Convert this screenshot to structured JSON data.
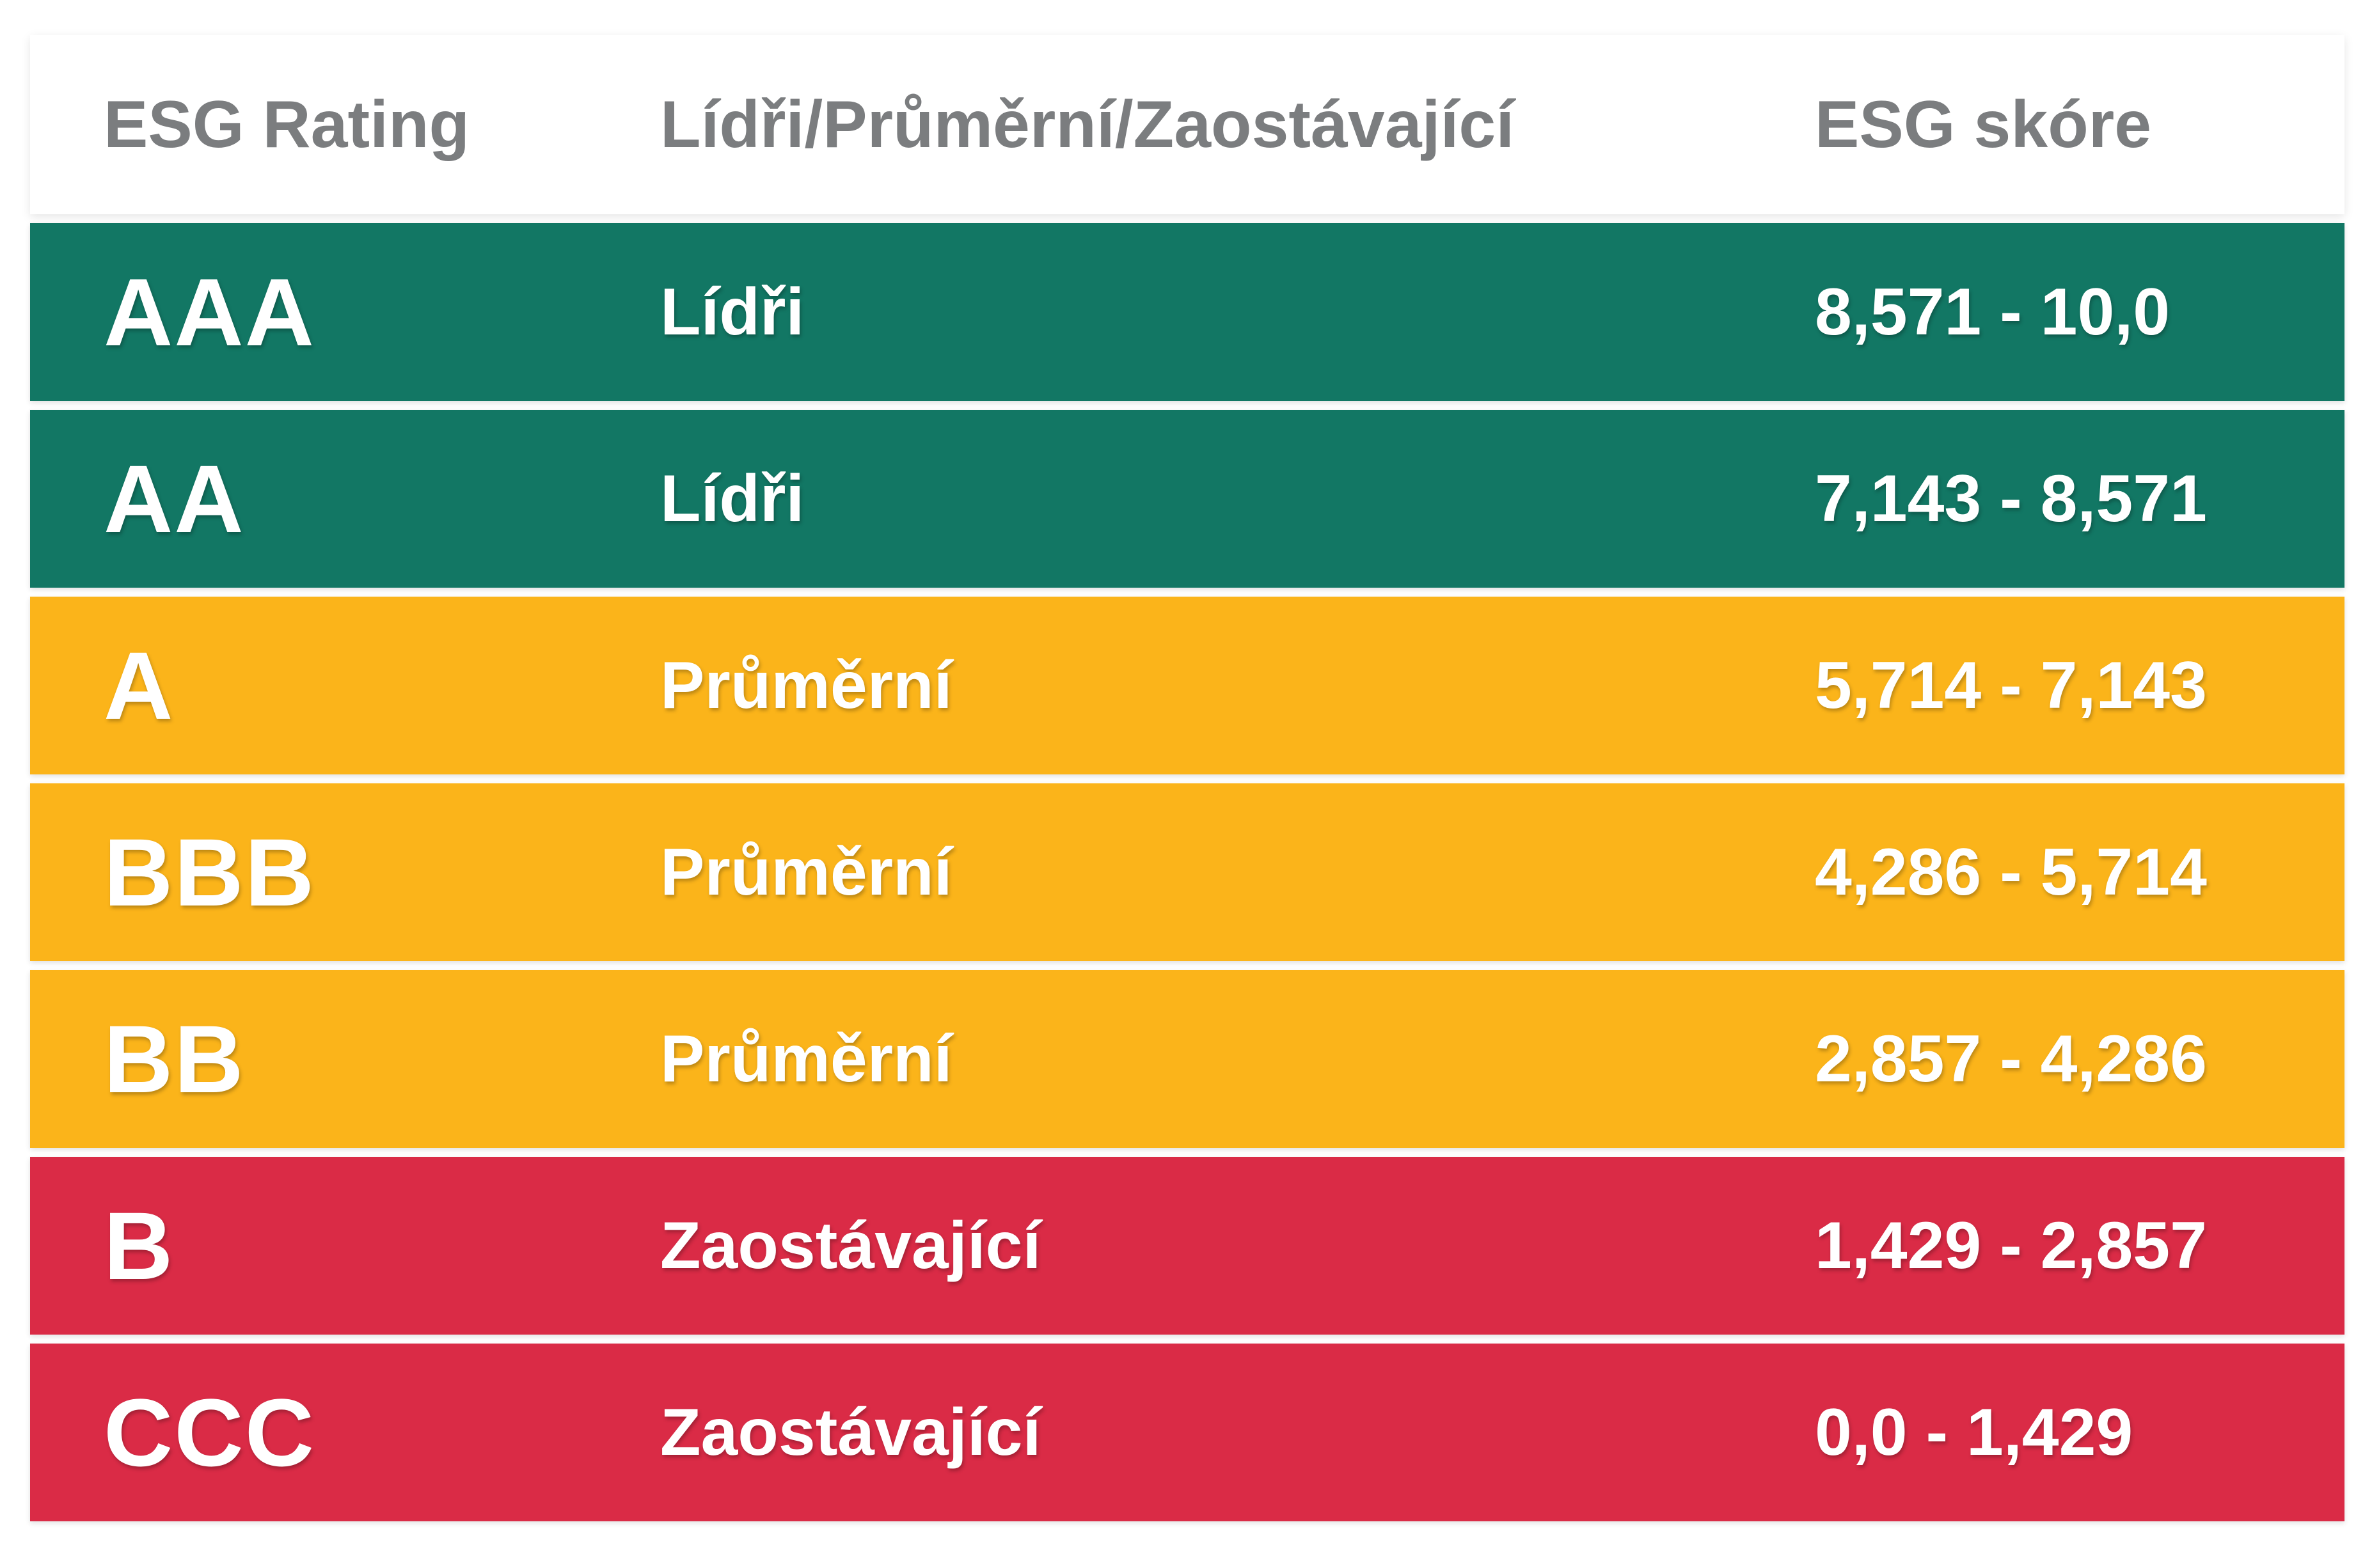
{
  "header": {
    "col_rating": "ESG Rating",
    "col_group": "Lídři/Průměrní/Zaostávající",
    "col_score": "ESG skóre"
  },
  "colors": {
    "leaders": "#127764",
    "average": "#fbb41a",
    "laggards": "#da2b46",
    "header_text": "#7b7d7f"
  },
  "rows": [
    {
      "rating": "AAA",
      "group": "Lídři",
      "score": "8,571 - 10,0",
      "tier": "leaders"
    },
    {
      "rating": "AA",
      "group": "Lídři",
      "score": "7,143 - 8,571",
      "tier": "leaders"
    },
    {
      "rating": "A",
      "group": "Průměrní",
      "score": "5,714 - 7,143",
      "tier": "average"
    },
    {
      "rating": "BBB",
      "group": "Průměrní",
      "score": "4,286 - 5,714",
      "tier": "average"
    },
    {
      "rating": "BB",
      "group": "Průměrní",
      "score": "2,857 - 4,286",
      "tier": "average"
    },
    {
      "rating": "B",
      "group": "Zaostávající",
      "score": "1,429 - 2,857",
      "tier": "laggards"
    },
    {
      "rating": "CCC",
      "group": "Zaostávající",
      "score": "0,0 - 1,429",
      "tier": "laggards"
    }
  ]
}
